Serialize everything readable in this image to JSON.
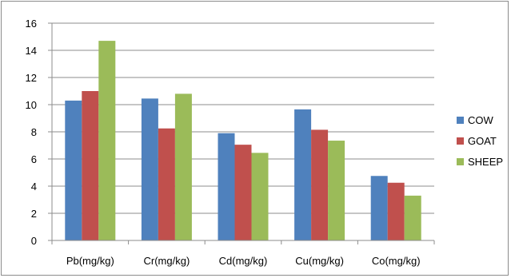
{
  "chart_data": {
    "type": "bar",
    "categories": [
      "Pb(mg/kg)",
      "Cr(mg/kg)",
      "Cd(mg/kg)",
      "Cu(mg/kg)",
      "Co(mg/kg)"
    ],
    "series": [
      {
        "name": "COW",
        "color": "#4F81BD",
        "values": [
          10.3,
          10.45,
          7.9,
          9.65,
          4.75
        ]
      },
      {
        "name": "GOAT",
        "color": "#C0504D",
        "values": [
          11.0,
          8.25,
          7.05,
          8.15,
          4.25
        ]
      },
      {
        "name": "SHEEP",
        "color": "#9BBB59",
        "values": [
          14.7,
          10.8,
          6.45,
          7.35,
          3.3
        ]
      }
    ],
    "title": "",
    "xlabel": "",
    "ylabel": "",
    "ylim": [
      0,
      16
    ],
    "yticks": [
      "0",
      "2",
      "4",
      "6",
      "8",
      "10",
      "12",
      "14",
      "16"
    ],
    "grid": true,
    "legend_position": "right"
  }
}
